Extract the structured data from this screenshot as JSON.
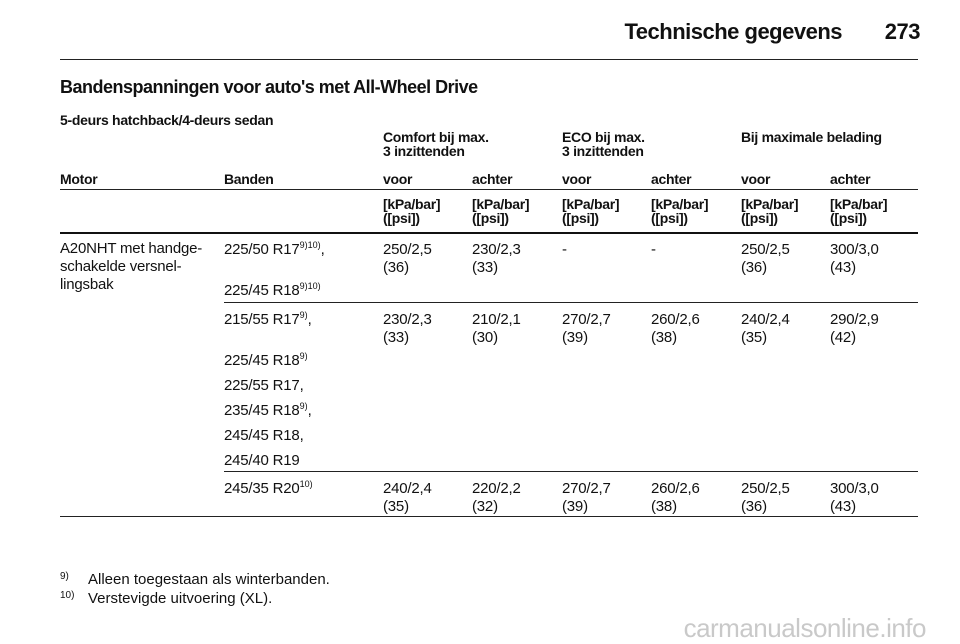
{
  "header": {
    "title": "Technische gegevens",
    "page": "273"
  },
  "section_title": "Bandenspanningen voor auto's met All-Wheel Drive",
  "subtitle": "5-deurs hatchback/4-deurs sedan",
  "table": {
    "group_headers": {
      "comfort": [
        "Comfort bij max.",
        "3 inzittenden"
      ],
      "eco": [
        "ECO bij max.",
        "3 inzittenden"
      ],
      "max": [
        "Bij maximale belading"
      ]
    },
    "columns": [
      "Motor",
      "Banden",
      "voor",
      "achter",
      "voor",
      "achter",
      "voor",
      "achter"
    ],
    "unit_lines": [
      "[kPa/bar]",
      "([psi])"
    ],
    "motor": [
      "A20NHT met handge-",
      "schakelde versnel-",
      "lingsbak"
    ],
    "rows": [
      {
        "tyres": [
          {
            "text": "225/50 R17",
            "sup": "9)10)",
            "suffix": ","
          },
          {
            "text": "225/45 R18",
            "sup": "9)10)",
            "suffix": ""
          }
        ],
        "values": [
          [
            "250/2,5",
            "(36)"
          ],
          [
            "230/2,3",
            "(33)"
          ],
          [
            "-",
            ""
          ],
          [
            "-",
            ""
          ],
          [
            "250/2,5",
            "(36)"
          ],
          [
            "300/3,0",
            "(43)"
          ]
        ]
      },
      {
        "tyres": [
          {
            "text": "215/55 R17",
            "sup": "9)",
            "suffix": ","
          },
          {
            "text": "225/45 R18",
            "sup": "9)",
            "suffix": ""
          },
          {
            "text": "225/55 R17,",
            "sup": "",
            "suffix": ""
          },
          {
            "text": "235/45 R18",
            "sup": "9)",
            "suffix": ","
          },
          {
            "text": "245/45 R18,",
            "sup": "",
            "suffix": ""
          },
          {
            "text": "245/40 R19",
            "sup": "",
            "suffix": ""
          }
        ],
        "values": [
          [
            "230/2,3",
            "(33)"
          ],
          [
            "210/2,1",
            "(30)"
          ],
          [
            "270/2,7",
            "(39)"
          ],
          [
            "260/2,6",
            "(38)"
          ],
          [
            "240/2,4",
            "(35)"
          ],
          [
            "290/2,9",
            "(42)"
          ]
        ]
      },
      {
        "tyres": [
          {
            "text": "245/35 R20",
            "sup": "10)",
            "suffix": ""
          }
        ],
        "values": [
          [
            "240/2,4",
            "(35)"
          ],
          [
            "220/2,2",
            "(32)"
          ],
          [
            "270/2,7",
            "(39)"
          ],
          [
            "260/2,6",
            "(38)"
          ],
          [
            "250/2,5",
            "(36)"
          ],
          [
            "300/3,0",
            "(43)"
          ]
        ]
      }
    ]
  },
  "footnotes": [
    {
      "mark": "9)",
      "text": "Alleen toegestaan als winterbanden."
    },
    {
      "mark": "10)",
      "text": "Verstevigde uitvoering (XL)."
    }
  ],
  "watermark": "carmanualsonline.info"
}
